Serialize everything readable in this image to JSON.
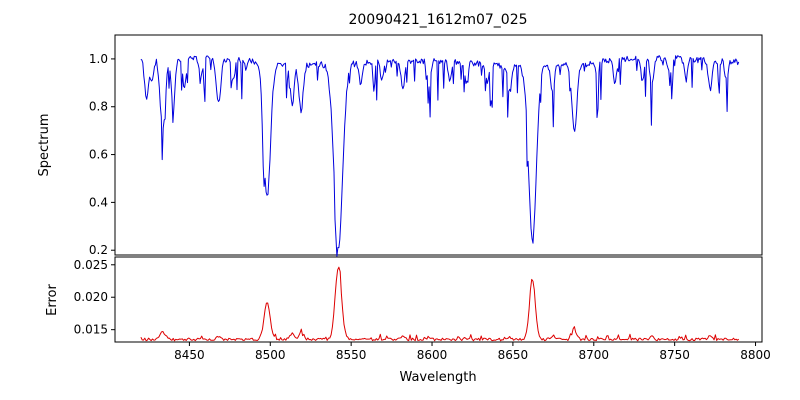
{
  "chart_data": {
    "type": "line",
    "title": "20090421_1612m07_025",
    "xlabel": "Wavelength",
    "x_range": [
      8404,
      8804
    ],
    "x_data_range": [
      8420,
      8790
    ],
    "x_ticks": [
      8450,
      8500,
      8550,
      8600,
      8650,
      8700,
      8750,
      8800
    ],
    "grid": false,
    "legend": "none",
    "panels": [
      {
        "name": "spectrum",
        "ylabel": "Spectrum",
        "ylim": [
          0.18,
          1.1
        ],
        "y_ticks": [
          {
            "value": 0.2,
            "label": "0.2"
          },
          {
            "value": 0.4,
            "label": "0.4"
          },
          {
            "value": 0.6,
            "label": "0.6"
          },
          {
            "value": 0.8,
            "label": "0.8"
          },
          {
            "value": 1.0,
            "label": "1.0"
          }
        ],
        "color": "#0000dd",
        "continuum": 0.988,
        "absorption_lines": [
          {
            "x": 8423.5,
            "depth": 0.17,
            "width": 1.2
          },
          {
            "x": 8427.0,
            "depth": 0.1,
            "width": 1.0
          },
          {
            "x": 8433.5,
            "depth": 0.3,
            "width": 1.6
          },
          {
            "x": 8440.0,
            "depth": 0.2,
            "width": 1.2
          },
          {
            "x": 8447.0,
            "depth": 0.13,
            "width": 1.1
          },
          {
            "x": 8457.0,
            "depth": 0.09,
            "width": 1.0
          },
          {
            "x": 8468.0,
            "depth": 0.18,
            "width": 1.4
          },
          {
            "x": 8477.0,
            "depth": 0.09,
            "width": 1.0
          },
          {
            "x": 8498.0,
            "depth": 0.565,
            "width": 2.1
          },
          {
            "x": 8513.5,
            "depth": 0.17,
            "width": 1.2
          },
          {
            "x": 8519.0,
            "depth": 0.19,
            "width": 1.3
          },
          {
            "x": 8542.1,
            "depth": 0.765,
            "width": 2.7
          },
          {
            "x": 8556.0,
            "depth": 0.09,
            "width": 1.0
          },
          {
            "x": 8569.0,
            "depth": 0.07,
            "width": 1.0
          },
          {
            "x": 8582.0,
            "depth": 0.11,
            "width": 1.1
          },
          {
            "x": 8598.0,
            "depth": 0.11,
            "width": 1.1
          },
          {
            "x": 8611.0,
            "depth": 0.08,
            "width": 1.0
          },
          {
            "x": 8621.0,
            "depth": 0.08,
            "width": 1.0
          },
          {
            "x": 8634.0,
            "depth": 0.07,
            "width": 1.0
          },
          {
            "x": 8648.0,
            "depth": 0.11,
            "width": 1.1
          },
          {
            "x": 8662.1,
            "depth": 0.735,
            "width": 2.4
          },
          {
            "x": 8674.5,
            "depth": 0.11,
            "width": 1.1
          },
          {
            "x": 8688.0,
            "depth": 0.29,
            "width": 1.5
          },
          {
            "x": 8702.0,
            "depth": 0.07,
            "width": 1.0
          },
          {
            "x": 8713.0,
            "depth": 0.09,
            "width": 1.0
          },
          {
            "x": 8730.0,
            "depth": 0.09,
            "width": 1.0
          },
          {
            "x": 8736.0,
            "depth": 0.11,
            "width": 1.1
          },
          {
            "x": 8747.0,
            "depth": 0.07,
            "width": 1.0
          },
          {
            "x": 8757.0,
            "depth": 0.09,
            "width": 1.0
          },
          {
            "x": 8772.0,
            "depth": 0.12,
            "width": 1.2
          },
          {
            "x": 8782.0,
            "depth": 0.08,
            "width": 1.0
          }
        ],
        "noise": {
          "amplitude": 0.025,
          "dip_probability": 0.18,
          "dip_max_depth": 0.17,
          "seed": 11
        }
      },
      {
        "name": "error",
        "ylabel": "Error",
        "ylim": [
          0.0131,
          0.0262
        ],
        "y_ticks": [
          {
            "value": 0.015,
            "label": "0.015"
          },
          {
            "value": 0.02,
            "label": "0.020"
          },
          {
            "value": 0.025,
            "label": "0.025"
          }
        ],
        "color": "#dd0000",
        "baseline": 0.0135,
        "peaks": [
          {
            "x": 8433.5,
            "height": 0.0011,
            "width": 1.6
          },
          {
            "x": 8468.0,
            "height": 0.0005,
            "width": 1.4
          },
          {
            "x": 8498.0,
            "height": 0.0058,
            "width": 1.8
          },
          {
            "x": 8513.5,
            "height": 0.0009,
            "width": 1.3
          },
          {
            "x": 8519.0,
            "height": 0.0009,
            "width": 1.3
          },
          {
            "x": 8542.1,
            "height": 0.0112,
            "width": 2.0
          },
          {
            "x": 8582.0,
            "height": 0.0004,
            "width": 1.1
          },
          {
            "x": 8598.0,
            "height": 0.0004,
            "width": 1.1
          },
          {
            "x": 8648.0,
            "height": 0.0004,
            "width": 1.1
          },
          {
            "x": 8662.1,
            "height": 0.0092,
            "width": 1.8
          },
          {
            "x": 8674.5,
            "height": 0.0005,
            "width": 1.1
          },
          {
            "x": 8688.0,
            "height": 0.0011,
            "width": 1.4
          },
          {
            "x": 8736.0,
            "height": 0.0004,
            "width": 1.1
          },
          {
            "x": 8772.0,
            "height": 0.0005,
            "width": 1.2
          }
        ],
        "noise": {
          "amplitude": 0.0004,
          "bump_probability": 0.08,
          "bump_max_height": 0.0008,
          "seed": 23
        }
      }
    ]
  }
}
